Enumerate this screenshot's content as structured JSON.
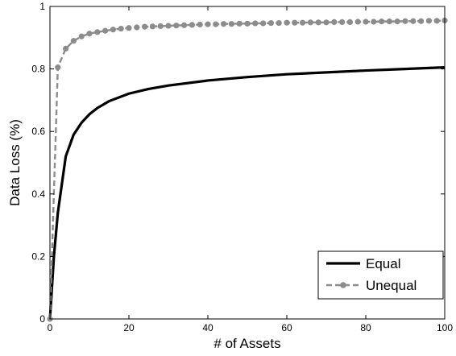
{
  "chart_data": {
    "type": "line",
    "title": "",
    "xlabel": "# of Assets",
    "ylabel": "Data Loss (%)",
    "xlim": [
      0,
      100
    ],
    "ylim": [
      0,
      1
    ],
    "xticks": [
      "0",
      "20",
      "40",
      "60",
      "80",
      "100"
    ],
    "yticks": [
      "0",
      "0.2",
      "0.4",
      "0.6",
      "0.8",
      "1"
    ],
    "grid": false,
    "legend_position": "bottom-right",
    "series": [
      {
        "name": "Equal",
        "color": "#000000",
        "style": "solid",
        "x": [
          0,
          1,
          2,
          4,
          6,
          8,
          10,
          12,
          15,
          20,
          25,
          30,
          40,
          50,
          60,
          70,
          80,
          90,
          100
        ],
        "y": [
          0,
          0.2,
          0.34,
          0.52,
          0.59,
          0.628,
          0.655,
          0.675,
          0.697,
          0.721,
          0.736,
          0.747,
          0.763,
          0.774,
          0.783,
          0.789,
          0.795,
          0.8,
          0.805
        ]
      },
      {
        "name": "Unequal",
        "color": "#8c8c8c",
        "style": "dashed-dots",
        "x": [
          0,
          2,
          4,
          6,
          8,
          10,
          12,
          14,
          16,
          18,
          20,
          22,
          24,
          26,
          28,
          30,
          32,
          34,
          36,
          38,
          40,
          42,
          44,
          46,
          48,
          50,
          52,
          54,
          56,
          58,
          60,
          62,
          64,
          66,
          68,
          70,
          72,
          74,
          76,
          78,
          80,
          82,
          84,
          86,
          88,
          90,
          92,
          94,
          96,
          98,
          100
        ],
        "y": [
          0,
          0.805,
          0.865,
          0.89,
          0.904,
          0.913,
          0.918,
          0.922,
          0.926,
          0.929,
          0.931,
          0.933,
          0.935,
          0.936,
          0.937,
          0.938,
          0.939,
          0.94,
          0.941,
          0.942,
          0.943,
          0.943,
          0.944,
          0.944,
          0.945,
          0.945,
          0.946,
          0.946,
          0.947,
          0.947,
          0.948,
          0.948,
          0.948,
          0.949,
          0.949,
          0.949,
          0.95,
          0.95,
          0.95,
          0.951,
          0.951,
          0.951,
          0.952,
          0.952,
          0.952,
          0.953,
          0.953,
          0.953,
          0.954,
          0.954,
          0.955
        ]
      }
    ]
  }
}
